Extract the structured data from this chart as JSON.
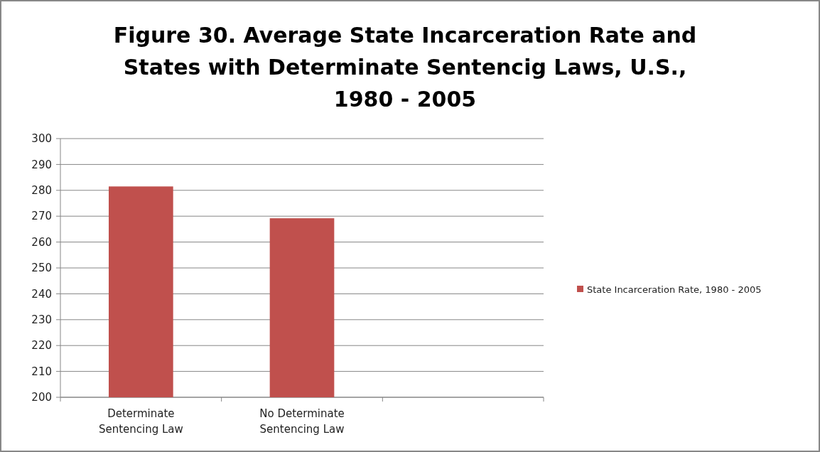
{
  "chart_data": {
    "type": "bar",
    "title": "Figure 30.  Average State Incarceration Rate and States with Determinate Sentencig Laws, U.S., 1980 - 2005",
    "categories": [
      "Determinate Sentencing Law",
      "No Determinate Sentencing Law",
      null
    ],
    "series": [
      {
        "name": "State Incarceration Rate, 1980 - 2005",
        "color": "#c0504d",
        "values": [
          281.5,
          269.2,
          null
        ]
      }
    ],
    "ylim": [
      200,
      300
    ],
    "yticks": [
      200,
      210,
      220,
      230,
      240,
      250,
      260,
      270,
      280,
      290,
      300
    ],
    "grid": "y",
    "legend": "right"
  }
}
